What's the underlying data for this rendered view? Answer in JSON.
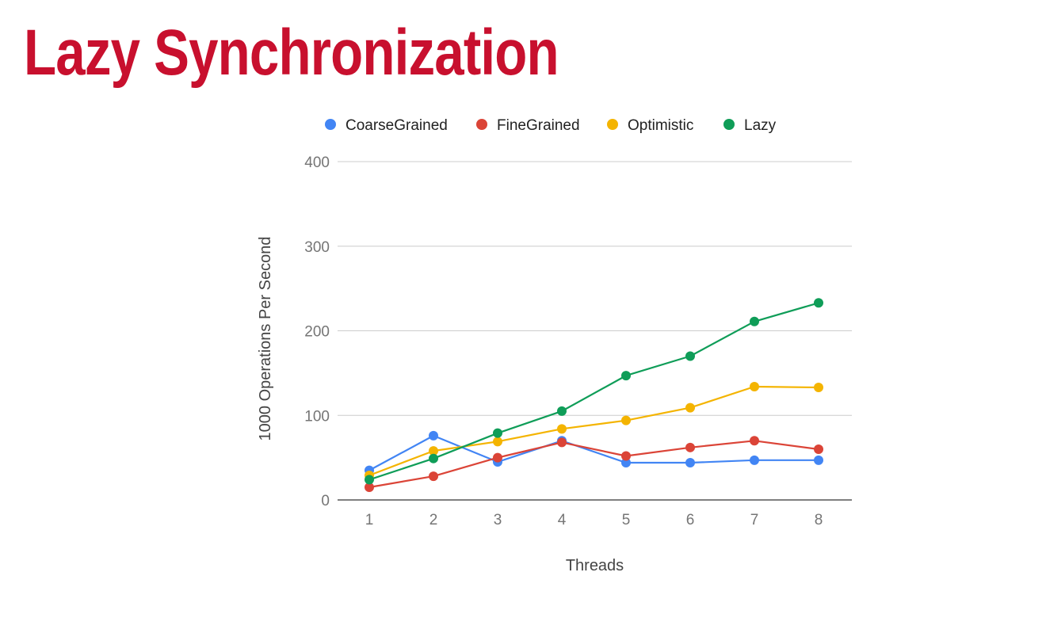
{
  "slide": {
    "title": "Lazy Synchronization"
  },
  "chart_data": {
    "type": "line",
    "title": "",
    "xlabel": "Threads",
    "ylabel": "1000 Operations Per Second",
    "x": [
      1,
      2,
      3,
      4,
      5,
      6,
      7,
      8
    ],
    "ylim": [
      0,
      400
    ],
    "yticks": [
      0,
      100,
      200,
      300,
      400
    ],
    "grid": true,
    "legend_position": "top",
    "series": [
      {
        "name": "CoarseGrained",
        "color": "#4285f4",
        "values": [
          35,
          76,
          45,
          70,
          44,
          44,
          47,
          47
        ]
      },
      {
        "name": "FineGrained",
        "color": "#db4437",
        "values": [
          15,
          28,
          50,
          68,
          52,
          62,
          70,
          60
        ]
      },
      {
        "name": "Optimistic",
        "color": "#f4b400",
        "values": [
          29,
          58,
          69,
          84,
          94,
          109,
          134,
          133
        ]
      },
      {
        "name": "Lazy",
        "color": "#0f9d58",
        "values": [
          24,
          49,
          79,
          105,
          147,
          170,
          211,
          233
        ]
      }
    ]
  }
}
